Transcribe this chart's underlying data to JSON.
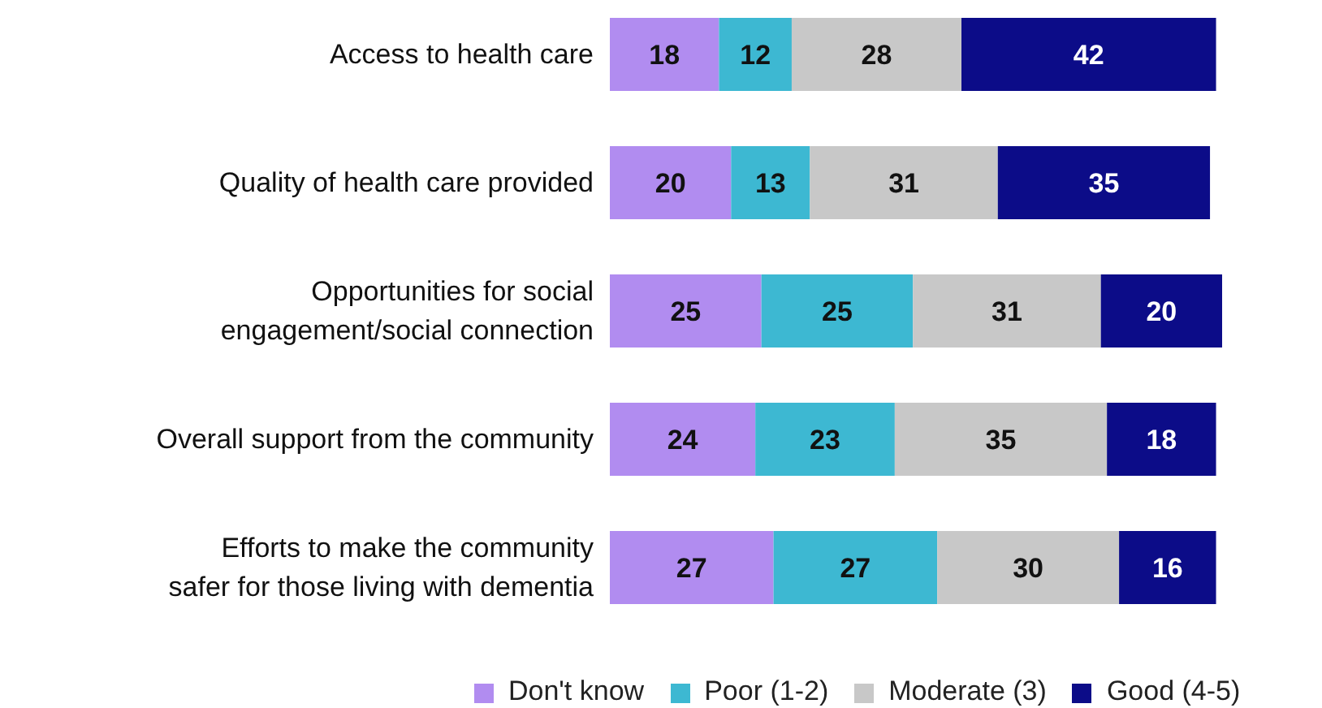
{
  "chart_data": {
    "type": "bar",
    "orientation": "horizontal",
    "stacked": true,
    "data_labels": true,
    "legend": "bottom",
    "grid": false,
    "categories": [
      "Access to health care",
      "Quality of health care provided",
      "Opportunities for social\nengagement/social connection",
      "Overall support from the community",
      "Efforts to make the community\nsafer for those living with dementia"
    ],
    "series": [
      {
        "name": "Don't know",
        "color": "#b18cf0",
        "values": [
          18,
          20,
          25,
          24,
          27
        ]
      },
      {
        "name": "Poor (1-2)",
        "color": "#3db8d2",
        "values": [
          12,
          13,
          25,
          23,
          27
        ]
      },
      {
        "name": "Moderate (3)",
        "color": "#c8c8c8",
        "values": [
          28,
          31,
          31,
          35,
          30
        ]
      },
      {
        "name": "Good (4-5)",
        "color": "#0c0c88",
        "values": [
          42,
          35,
          20,
          18,
          16
        ]
      }
    ]
  }
}
